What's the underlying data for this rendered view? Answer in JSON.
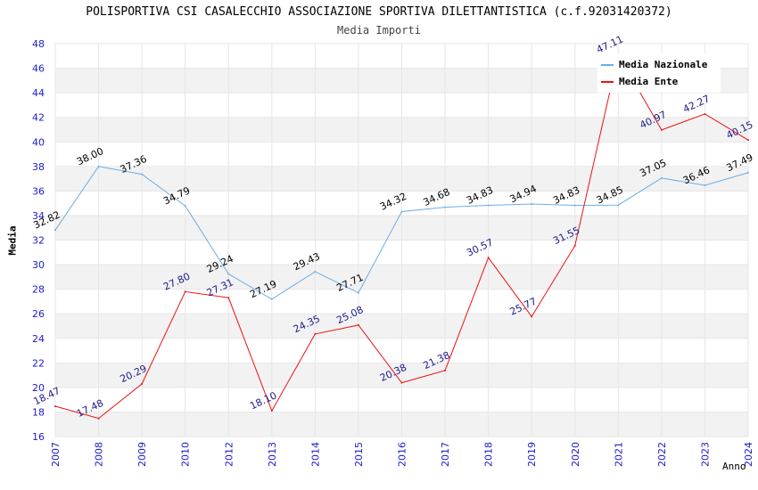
{
  "chart_data": {
    "type": "line",
    "title": "POLISPORTIVA CSI CASALECCHIO ASSOCIAZIONE SPORTIVA DILETTANTISTICA (c.f.92031420372)",
    "subtitle": "Media Importi",
    "xlabel": "Anno",
    "ylabel": "Media",
    "categories": [
      "2007",
      "2008",
      "2009",
      "2010",
      "2012",
      "2013",
      "2014",
      "2015",
      "2016",
      "2017",
      "2018",
      "2019",
      "2020",
      "2021",
      "2022",
      "2023",
      "2024"
    ],
    "ylim": [
      16,
      48
    ],
    "yticks": [
      "16",
      "18",
      "20",
      "22",
      "24",
      "26",
      "28",
      "30",
      "32",
      "34",
      "36",
      "38",
      "40",
      "42",
      "44",
      "46",
      "48"
    ],
    "grid": true,
    "legend_position": "top-right",
    "series": [
      {
        "name": "Media Nazionale",
        "color": "#6aaee8",
        "label_color": "#000000",
        "values": [
          32.82,
          38.0,
          37.36,
          34.79,
          29.24,
          27.19,
          29.43,
          27.71,
          34.32,
          34.68,
          34.83,
          34.94,
          34.83,
          34.85,
          37.05,
          36.46,
          37.49
        ],
        "labels": [
          "32.82",
          "38.00",
          "37.36",
          "34.79",
          "29.24",
          "27.19",
          "29.43",
          "27.71",
          "34.32",
          "34.68",
          "34.83",
          "34.94",
          "34.83",
          "34.85",
          "37.05",
          "36.46",
          "37.49"
        ]
      },
      {
        "name": "Media Ente",
        "color": "#ee1111",
        "label_color": "#1a1a8c",
        "values": [
          18.47,
          17.48,
          20.29,
          27.8,
          27.31,
          18.1,
          24.35,
          25.08,
          20.38,
          21.38,
          30.57,
          25.77,
          31.55,
          47.11,
          40.97,
          42.27,
          40.15
        ],
        "labels": [
          "18.47",
          "17.48",
          "20.29",
          "27.80",
          "27.31",
          "18.10",
          "24.35",
          "25.08",
          "20.38",
          "21.38",
          "30.57",
          "25.77",
          "31.55",
          "47.11",
          "40.97",
          "42.27",
          "40.15"
        ]
      }
    ],
    "colors": {
      "axis_tick_text": "#1a1acc",
      "band": "#f2f2f2",
      "gridline": "#ffffff"
    }
  }
}
